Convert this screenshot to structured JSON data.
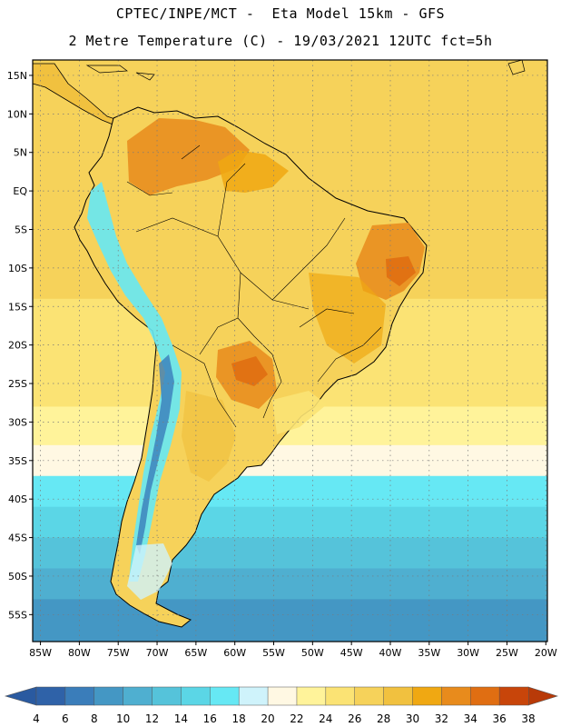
{
  "header": {
    "title_line1": "CPTEC/INPE/MCT -  Eta Model 15km - GFS",
    "title_line2": "2 Metre Temperature (C) - 19/03/2021 12UTC fct=5h"
  },
  "map": {
    "lon_ticks": [
      "85W",
      "80W",
      "75W",
      "70W",
      "65W",
      "60W",
      "55W",
      "50W",
      "45W",
      "40W",
      "35W",
      "30W",
      "25W",
      "20W"
    ],
    "lat_ticks": [
      "15N",
      "10N",
      "5N",
      "EQ",
      "5S",
      "10S",
      "15S",
      "20S",
      "25S",
      "30S",
      "35S",
      "40S",
      "45S",
      "50S",
      "55S"
    ],
    "lon_range": [
      -86,
      -19.8
    ],
    "lat_range": [
      17,
      -58.5
    ],
    "ocean_bands": [
      {
        "from_lat": 17,
        "to_lat": 6,
        "value": 26
      },
      {
        "from_lat": 6,
        "to_lat": -5,
        "value": 27
      },
      {
        "from_lat": -5,
        "to_lat": -14,
        "value": 26
      },
      {
        "from_lat": -14,
        "to_lat": -20,
        "value": 25
      },
      {
        "from_lat": -20,
        "to_lat": -28,
        "value": 24
      },
      {
        "from_lat": -28,
        "to_lat": -33,
        "value": 22
      },
      {
        "from_lat": -33,
        "to_lat": -37,
        "value": 20
      },
      {
        "from_lat": -37,
        "to_lat": -41,
        "value": 16
      },
      {
        "from_lat": -41,
        "to_lat": -45,
        "value": 14
      },
      {
        "from_lat": -45,
        "to_lat": -49,
        "value": 12
      },
      {
        "from_lat": -49,
        "to_lat": -53,
        "value": 10
      },
      {
        "from_lat": -53,
        "to_lat": -58.5,
        "value": 8
      }
    ]
  },
  "colorbar": {
    "labels": [
      "4",
      "6",
      "8",
      "10",
      "12",
      "14",
      "16",
      "18",
      "20",
      "22",
      "24",
      "26",
      "28",
      "30",
      "32",
      "34",
      "36",
      "38"
    ],
    "colors": [
      "#2F62A8",
      "#3A7DBA",
      "#4497C4",
      "#4FAFD0",
      "#55C3DA",
      "#5BD6E6",
      "#66E8F4",
      "#CFF3FB",
      "#FFF8E3",
      "#FFF39A",
      "#FBE374",
      "#F6D25A",
      "#F1C13F",
      "#F0A812",
      "#E88B1C",
      "#E06E12",
      "#C8450A"
    ],
    "low_color": "#2A5AA0",
    "high_color": "#B83A08"
  }
}
